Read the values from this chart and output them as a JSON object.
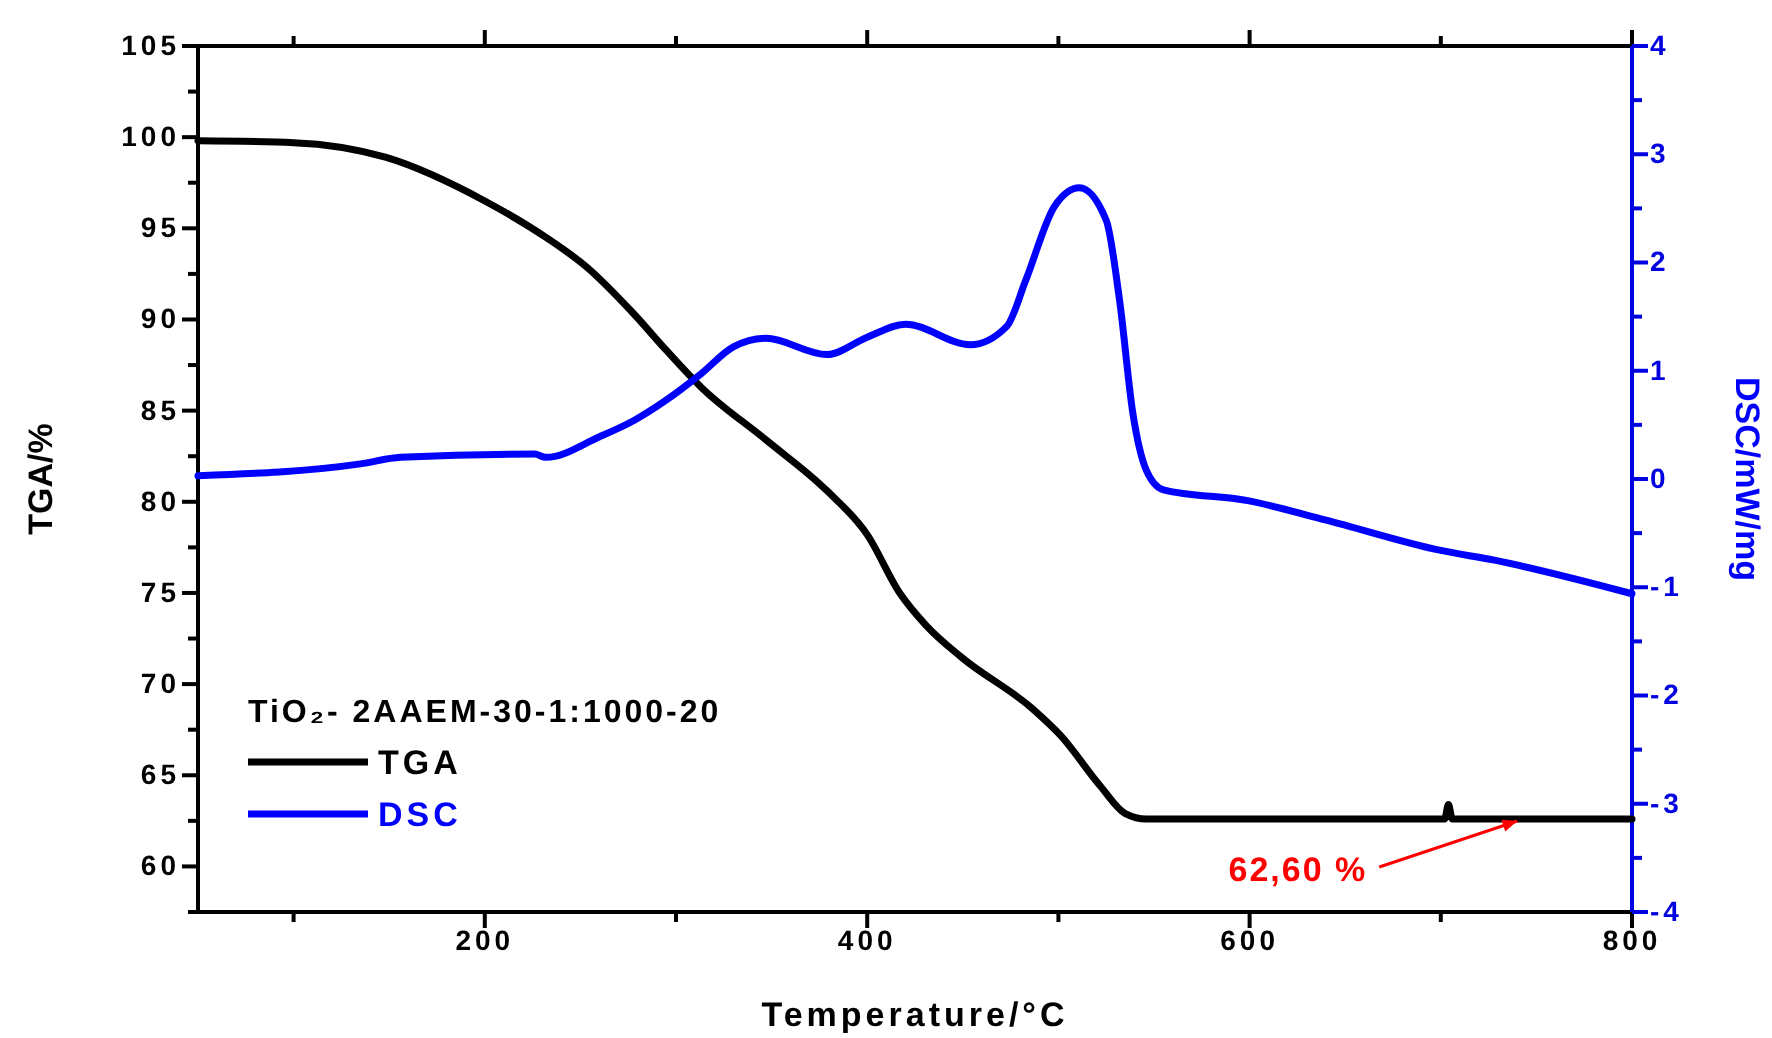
{
  "chart_data": {
    "type": "line",
    "xlabel": "Temperature/°C",
    "ylabel": "TGA/%",
    "y2label": "DSC/mW/mg",
    "legend_title": "TiO₂- 2AAEM-30-1:1000-20",
    "legend": "bottom left",
    "grid": false,
    "marker": "none",
    "line_style": "solid",
    "xlim": [
      50,
      800
    ],
    "ylim": [
      57.5,
      105
    ],
    "y2lim": [
      -4,
      4
    ],
    "xticks": [
      {
        "value": 100,
        "label": null
      },
      200,
      {
        "value": 300,
        "label": null
      },
      400,
      {
        "value": 500,
        "label": null
      },
      600,
      {
        "value": 700,
        "label": null
      },
      800
    ],
    "yticks": [
      {
        "value": 57.5,
        "label": null
      },
      60,
      {
        "value": 62.5,
        "label": null
      },
      65,
      {
        "value": 67.5,
        "label": null
      },
      70,
      {
        "value": 72.5,
        "label": null
      },
      75,
      {
        "value": 77.5,
        "label": null
      },
      80,
      {
        "value": 82.5,
        "label": null
      },
      85,
      {
        "value": 87.5,
        "label": null
      },
      90,
      {
        "value": 92.5,
        "label": null
      },
      95,
      {
        "value": 97.5,
        "label": null
      },
      100,
      {
        "value": 102.5,
        "label": null
      },
      105
    ],
    "y2ticks": [
      -4,
      {
        "value": -3.5,
        "label": null
      },
      -3,
      {
        "value": -2.5,
        "label": null
      },
      -2,
      {
        "value": -1.5,
        "label": null
      },
      -1,
      {
        "value": -0.5,
        "label": null
      },
      0,
      {
        "value": 0.5,
        "label": null
      },
      1,
      {
        "value": 1.5,
        "label": null
      },
      2,
      {
        "value": 2.5,
        "label": null
      },
      3,
      {
        "value": 3.5,
        "label": null
      },
      4
    ],
    "series": [
      {
        "name": "TGA",
        "color": "#000000",
        "x": [
          50,
          100,
          148,
          200,
          232,
          253,
          278,
          295,
          313,
          347,
          379,
          400,
          417,
          431,
          449,
          487,
          501,
          522,
          535,
          546,
          600,
          702,
          704,
          706,
          800
        ],
        "values": [
          99.8,
          99.7,
          98.9,
          96.5,
          94.5,
          92.9,
          90.3,
          88.3,
          86.3,
          83.4,
          80.6,
          78.2,
          75.0,
          73.2,
          71.5,
          68.6,
          67.2,
          64.4,
          62.9,
          62.6,
          62.6,
          62.6,
          63.4,
          62.6,
          62.6
        ]
      },
      {
        "name": "DSC",
        "color": "#0000ff",
        "axis": "y2",
        "x": [
          50,
          135,
          156,
          226,
          232,
          260,
          278,
          295,
          313,
          330,
          347,
          379,
          400,
          420,
          454,
          473,
          483,
          498,
          511,
          525,
          532,
          539,
          546,
          555,
          599,
          640,
          700,
          728,
          800
        ],
        "values": [
          0.03,
          0.14,
          0.2,
          0.23,
          0.2,
          0.39,
          0.54,
          0.73,
          0.97,
          1.22,
          1.3,
          1.15,
          1.31,
          1.43,
          1.24,
          1.41,
          1.84,
          2.52,
          2.69,
          2.39,
          1.65,
          0.6,
          0.08,
          -0.1,
          -0.2,
          -0.38,
          -0.66,
          -0.75,
          -1.06
        ]
      }
    ],
    "annotations": [
      {
        "text": "62,60 %",
        "x": 740,
        "y": 62.6
      }
    ]
  }
}
